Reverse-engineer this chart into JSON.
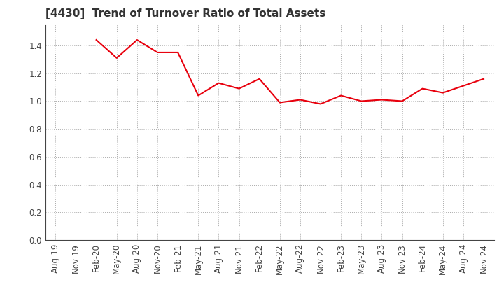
{
  "title": "[4430]  Trend of Turnover Ratio of Total Assets",
  "x_labels": [
    "Aug-19",
    "Nov-19",
    "Feb-20",
    "May-20",
    "Aug-20",
    "Nov-20",
    "Feb-21",
    "May-21",
    "Aug-21",
    "Nov-21",
    "Feb-22",
    "May-22",
    "Aug-22",
    "Nov-22",
    "Feb-23",
    "May-23",
    "Aug-23",
    "Nov-23",
    "Feb-24",
    "May-24",
    "Aug-24",
    "Nov-24"
  ],
  "y_values": [
    null,
    null,
    1.44,
    1.31,
    1.44,
    1.35,
    1.35,
    1.04,
    1.13,
    1.09,
    1.16,
    0.99,
    1.01,
    0.98,
    1.04,
    1.0,
    1.01,
    1.0,
    1.09,
    1.06,
    1.11,
    1.16
  ],
  "line_color": "#e8000d",
  "line_width": 1.5,
  "ylim": [
    0.0,
    1.55
  ],
  "yticks": [
    0.0,
    0.2,
    0.4,
    0.6,
    0.8,
    1.0,
    1.2,
    1.4
  ],
  "grid_color": "#aaaaaa",
  "bg_color": "#ffffff",
  "title_fontsize": 11,
  "tick_fontsize": 8.5,
  "title_color": "#333333"
}
